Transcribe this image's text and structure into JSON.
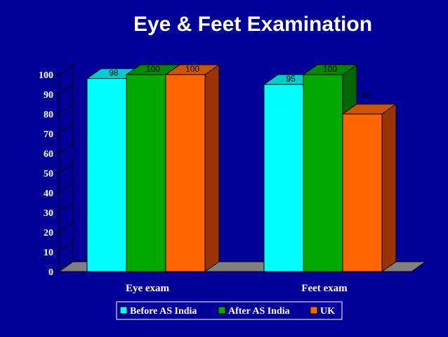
{
  "slide": {
    "title": "Eye & Feet Examination"
  },
  "colors": {
    "background": "#000099",
    "series": [
      {
        "front": "#00ffff",
        "side": "#00aaaa",
        "top": "#00cccc"
      },
      {
        "front": "#00a800",
        "side": "#006600",
        "top": "#008800"
      },
      {
        "front": "#ff6600",
        "side": "#993300",
        "top": "#cc5500"
      }
    ],
    "floor": "#808080"
  },
  "chart_data": {
    "type": "bar",
    "title": "Eye & Feet Examination",
    "categories": [
      "Eye exam",
      "Feet exam"
    ],
    "series": [
      {
        "name": "Before AS India",
        "values": [
          98,
          95
        ]
      },
      {
        "name": "After AS India",
        "values": [
          100,
          100
        ]
      },
      {
        "name": "UK",
        "values": [
          100,
          80
        ]
      }
    ],
    "yticks": [
      "0",
      "10",
      "20",
      "30",
      "40",
      "50",
      "60",
      "70",
      "80",
      "90",
      "100"
    ],
    "ylim": [
      0,
      100
    ],
    "grid": false,
    "legend": "bottom",
    "three_d": true
  }
}
